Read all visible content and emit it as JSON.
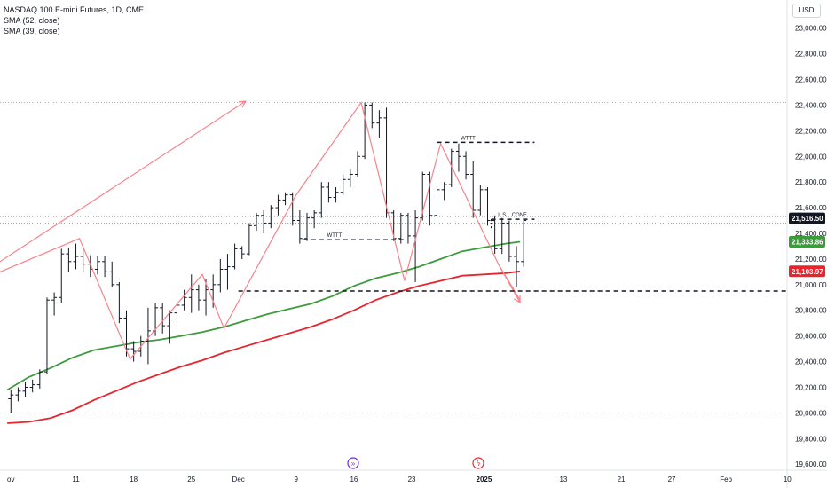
{
  "header": {
    "title": "NASDAQ 100 E-mini Futures, 1D, CME",
    "indicators": [
      "SMA (52, close)",
      "SMA (39, close)"
    ],
    "currency": "USD"
  },
  "colors": {
    "bars": "#131722",
    "sma52": "#3d9b3d",
    "sma39": "#e8252e",
    "arrows": "#f7838b",
    "current_price_tag": "#131722",
    "axis_text": "#131722"
  },
  "chart_data": {
    "type": "ohlc",
    "ylim": [
      19500,
      23150
    ],
    "x_range": [
      0,
      116
    ],
    "y_ticks": [
      23000,
      22800,
      22600,
      22400,
      22200,
      22000,
      21800,
      21600,
      21400,
      21200,
      21000,
      20800,
      20600,
      20400,
      20200,
      20000,
      19800,
      19600
    ],
    "y_tick_labels": [
      "23,000.00",
      "22,800.00",
      "22,600.00",
      "22,400.00",
      "22,200.00",
      "22,000.00",
      "21,800.00",
      "21,600.00",
      "21,400.00",
      "21,200.00",
      "21,000.00",
      "20,800.00",
      "20,600.00",
      "20,400.00",
      "20,200.00",
      "20,000.00",
      "19,800.00",
      "19,600.00"
    ],
    "x_ticks": [
      {
        "label": "ov",
        "x": 0.5
      },
      {
        "label": "11",
        "x": 9.5
      },
      {
        "label": "18",
        "x": 17.5
      },
      {
        "label": "25",
        "x": 25.5
      },
      {
        "label": "Dec",
        "x": 32
      },
      {
        "label": "9",
        "x": 40
      },
      {
        "label": "16",
        "x": 48
      },
      {
        "label": "23",
        "x": 56
      },
      {
        "label": "2025",
        "x": 66
      },
      {
        "label": "13",
        "x": 77
      },
      {
        "label": "21",
        "x": 85
      },
      {
        "label": "27",
        "x": 92
      },
      {
        "label": "Feb",
        "x": 99.5
      },
      {
        "label": "10",
        "x": 108
      }
    ],
    "ohlc": [
      [
        20110,
        20180,
        20000,
        20140
      ],
      [
        20140,
        20200,
        20090,
        20170
      ],
      [
        20170,
        20240,
        20120,
        20200
      ],
      [
        20200,
        20260,
        20160,
        20220
      ],
      [
        20220,
        20340,
        20190,
        20320
      ],
      [
        20320,
        20900,
        20300,
        20880
      ],
      [
        20880,
        20940,
        20760,
        20900
      ],
      [
        20900,
        21280,
        20860,
        21240
      ],
      [
        21240,
        21290,
        21100,
        21180
      ],
      [
        21180,
        21320,
        21120,
        21220
      ],
      [
        21220,
        21300,
        21100,
        21160
      ],
      [
        21160,
        21230,
        21060,
        21120
      ],
      [
        21120,
        21220,
        21080,
        21180
      ],
      [
        21180,
        21220,
        21060,
        21100
      ],
      [
        21100,
        21180,
        20980,
        21000
      ],
      [
        21000,
        21020,
        20700,
        20740
      ],
      [
        20740,
        20800,
        20440,
        20500
      ],
      [
        20500,
        20560,
        20400,
        20480
      ],
      [
        20480,
        20600,
        20440,
        20560
      ],
      [
        20560,
        20820,
        20380,
        20640
      ],
      [
        20640,
        20860,
        20600,
        20820
      ],
      [
        20820,
        20860,
        20620,
        20680
      ],
      [
        20680,
        20800,
        20540,
        20780
      ],
      [
        20780,
        20880,
        20680,
        20840
      ],
      [
        20840,
        20960,
        20800,
        20900
      ],
      [
        20900,
        21080,
        20780,
        20960
      ],
      [
        20960,
        21000,
        20800,
        20880
      ],
      [
        20880,
        21040,
        20760,
        20960
      ],
      [
        20960,
        21080,
        20820,
        21000
      ],
      [
        21000,
        21200,
        20940,
        21120
      ],
      [
        21120,
        21240,
        20960,
        21140
      ],
      [
        21140,
        21320,
        21120,
        21280
      ],
      [
        21280,
        21300,
        21200,
        21240
      ],
      [
        21240,
        21480,
        21230,
        21460
      ],
      [
        21460,
        21560,
        21420,
        21540
      ],
      [
        21540,
        21580,
        21400,
        21480
      ],
      [
        21480,
        21620,
        21440,
        21600
      ],
      [
        21600,
        21700,
        21540,
        21660
      ],
      [
        21660,
        21720,
        21620,
        21700
      ],
      [
        21700,
        21720,
        21460,
        21500
      ],
      [
        21500,
        21580,
        21320,
        21360
      ],
      [
        21360,
        21560,
        21340,
        21520
      ],
      [
        21520,
        21580,
        21440,
        21560
      ],
      [
        21560,
        21800,
        21520,
        21760
      ],
      [
        21760,
        21800,
        21640,
        21680
      ],
      [
        21680,
        21760,
        21640,
        21720
      ],
      [
        21720,
        21860,
        21700,
        21820
      ],
      [
        21820,
        21900,
        21760,
        21860
      ],
      [
        21860,
        22040,
        21840,
        22000
      ],
      [
        22000,
        22420,
        21980,
        22400
      ],
      [
        22400,
        22420,
        22220,
        22260
      ],
      [
        22260,
        22360,
        22140,
        22300
      ],
      [
        22300,
        22380,
        21520,
        21560
      ],
      [
        21560,
        21580,
        21340,
        21360
      ],
      [
        21360,
        21560,
        21320,
        21540
      ],
      [
        21540,
        21560,
        21320,
        21380
      ],
      [
        21380,
        21580,
        21020,
        21520
      ],
      [
        21520,
        21880,
        21500,
        21860
      ],
      [
        21860,
        21880,
        21460,
        21540
      ],
      [
        21540,
        21760,
        21500,
        21740
      ],
      [
        21740,
        21800,
        21660,
        21780
      ],
      [
        21780,
        22060,
        21760,
        22040
      ],
      [
        22040,
        22100,
        21880,
        22000
      ],
      [
        22000,
        22040,
        21820,
        21860
      ],
      [
        21860,
        21960,
        21520,
        21580
      ],
      [
        21580,
        21780,
        21540,
        21740
      ],
      [
        21740,
        21760,
        21460,
        21500
      ],
      [
        21500,
        21540,
        21240,
        21280
      ],
      [
        21280,
        21520,
        21240,
        21480
      ],
      [
        21480,
        21500,
        21180,
        21220
      ],
      [
        21220,
        21300,
        20980,
        21180
      ],
      [
        21180,
        21520,
        21140,
        21500
      ]
    ],
    "series": [
      {
        "name": "SMA (52, close)",
        "points": [
          [
            0,
            20180
          ],
          [
            3,
            20280
          ],
          [
            6,
            20350
          ],
          [
            9,
            20430
          ],
          [
            12,
            20490
          ],
          [
            15,
            20520
          ],
          [
            18,
            20550
          ],
          [
            21,
            20570
          ],
          [
            24,
            20600
          ],
          [
            27,
            20630
          ],
          [
            30,
            20670
          ],
          [
            33,
            20720
          ],
          [
            36,
            20770
          ],
          [
            39,
            20810
          ],
          [
            42,
            20850
          ],
          [
            45,
            20910
          ],
          [
            48,
            20990
          ],
          [
            51,
            21050
          ],
          [
            54,
            21090
          ],
          [
            57,
            21140
          ],
          [
            60,
            21200
          ],
          [
            63,
            21260
          ],
          [
            66,
            21290
          ],
          [
            69,
            21320
          ],
          [
            71,
            21334
          ]
        ]
      },
      {
        "name": "SMA (39, close)",
        "points": [
          [
            0,
            19920
          ],
          [
            3,
            19930
          ],
          [
            6,
            19960
          ],
          [
            9,
            20020
          ],
          [
            12,
            20100
          ],
          [
            15,
            20170
          ],
          [
            18,
            20240
          ],
          [
            21,
            20300
          ],
          [
            24,
            20360
          ],
          [
            27,
            20410
          ],
          [
            30,
            20470
          ],
          [
            33,
            20520
          ],
          [
            36,
            20570
          ],
          [
            39,
            20620
          ],
          [
            42,
            20670
          ],
          [
            45,
            20730
          ],
          [
            48,
            20800
          ],
          [
            51,
            20880
          ],
          [
            54,
            20940
          ],
          [
            57,
            20990
          ],
          [
            60,
            21030
          ],
          [
            63,
            21070
          ],
          [
            66,
            21080
          ],
          [
            69,
            21090
          ],
          [
            71,
            21104
          ]
        ]
      }
    ],
    "price_tags": [
      {
        "label": "21,516.50",
        "value": 21516.5,
        "color": "#131722"
      },
      {
        "label": "21,333.86",
        "value": 21333.86,
        "color": "#3d9b3d"
      },
      {
        "label": "21,103.97",
        "value": 21103.97,
        "color": "#e8252e"
      }
    ],
    "drawings": {
      "zigzag": [
        [
          -1,
          21100
        ],
        [
          10,
          21360
        ],
        [
          17,
          20420
        ],
        [
          27,
          21080
        ],
        [
          30,
          20660
        ],
        [
          40,
          21700
        ],
        [
          49,
          22420
        ],
        [
          55,
          21030
        ],
        [
          60,
          22100
        ],
        [
          68,
          21160
        ],
        [
          71,
          20880
        ]
      ],
      "big_arrow": {
        "from": [
          -1,
          21180
        ],
        "to": [
          33,
          22430
        ]
      },
      "down_arrow": {
        "from": [
          68,
          21160
        ],
        "to": [
          71,
          20860
        ]
      },
      "dashed_levels": [
        {
          "x1": 59.5,
          "x2": 73,
          "y": 22110,
          "label": "WTTT"
        },
        {
          "x1": 41,
          "x2": 55,
          "y": 21350,
          "label": "WTTT"
        },
        {
          "x1": 32,
          "x2": 116,
          "y": 20950,
          "label": ""
        },
        {
          "x1": 67,
          "x2": 73,
          "y": 21510,
          "label": "L.S.L CONF."
        }
      ],
      "dotted_levels": [
        22420,
        21530,
        21480,
        20000
      ]
    }
  }
}
